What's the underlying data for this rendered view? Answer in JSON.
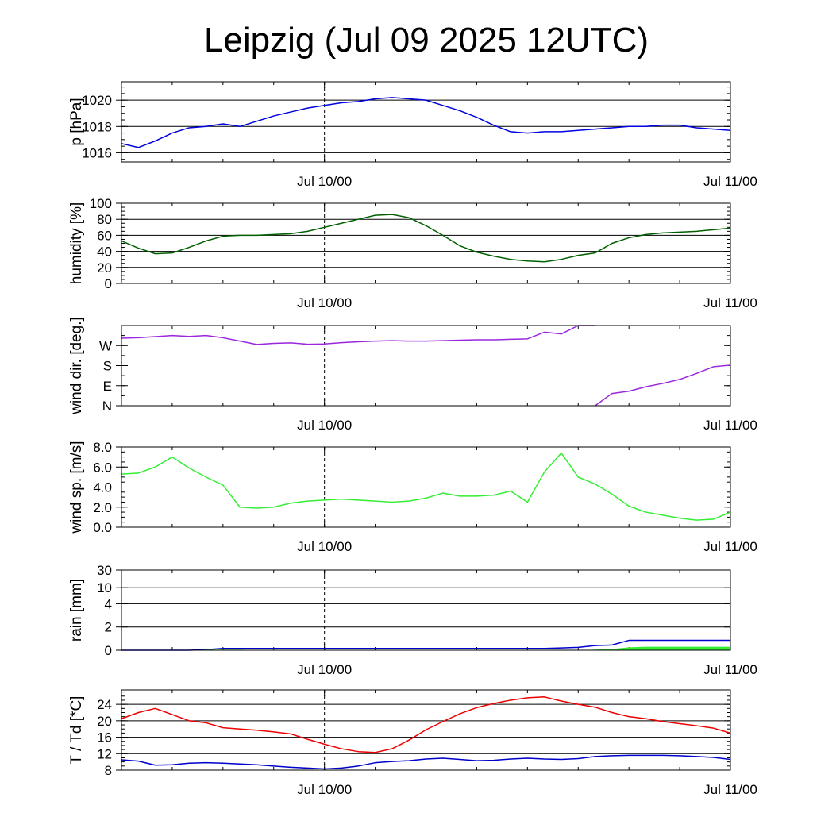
{
  "title": "Leipzig (Jul 09 2025 12UTC)",
  "x_axis": {
    "start": "Jul 09 12:00",
    "end": "Jul 11 00:00",
    "tick_labels": [
      "Jul 10/00",
      "Jul 11/00"
    ],
    "reference_line": "Jul 10/00"
  },
  "colors": {
    "pressure": "#0000e0",
    "humidity": "#006000",
    "wind_dir": "#9a27dd",
    "wind_speed": "#33ee33",
    "rain_total": "#0000cc",
    "rain_bar": "#33ee33",
    "temperature": "#ee0000",
    "dewpoint": "#0000cc"
  },
  "chart_data": [
    {
      "type": "line",
      "ylabel": "p [hPa]",
      "ylim": [
        1015.3,
        1021.4
      ],
      "yticks": [
        1016,
        1018,
        1020
      ],
      "ytick_labels": [
        "1016",
        "1018",
        "1020"
      ],
      "grid": true,
      "x": [
        "Jul 09 12:00",
        "Jul 09 13:00",
        "Jul 09 14:00",
        "Jul 09 15:00",
        "Jul 09 16:00",
        "Jul 09 17:00",
        "Jul 09 18:00",
        "Jul 09 19:00",
        "Jul 09 20:00",
        "Jul 09 21:00",
        "Jul 09 22:00",
        "Jul 09 23:00",
        "Jul 10 00:00",
        "Jul 10 01:00",
        "Jul 10 02:00",
        "Jul 10 03:00",
        "Jul 10 04:00",
        "Jul 10 05:00",
        "Jul 10 06:00",
        "Jul 10 07:00",
        "Jul 10 08:00",
        "Jul 10 09:00",
        "Jul 10 10:00",
        "Jul 10 11:00",
        "Jul 10 12:00",
        "Jul 10 13:00",
        "Jul 10 14:00",
        "Jul 10 15:00",
        "Jul 10 16:00",
        "Jul 10 17:00",
        "Jul 10 18:00",
        "Jul 10 19:00",
        "Jul 10 20:00",
        "Jul 10 21:00",
        "Jul 10 22:00",
        "Jul 10 23:00",
        "Jul 11 00:00"
      ],
      "series": [
        {
          "color_key": "pressure",
          "values": [
            1016.7,
            1016.4,
            1016.9,
            1017.5,
            1017.9,
            1018.0,
            1018.2,
            1018.0,
            1018.4,
            1018.8,
            1019.1,
            1019.4,
            1019.6,
            1019.8,
            1019.9,
            1020.1,
            1020.2,
            1020.1,
            1020.0,
            1019.6,
            1019.2,
            1018.7,
            1018.1,
            1017.6,
            1017.5,
            1017.6,
            1017.6,
            1017.7,
            1017.8,
            1017.9,
            1018.0,
            1018.0,
            1018.1,
            1018.1,
            1017.9,
            1017.8,
            1017.7
          ]
        }
      ]
    },
    {
      "type": "line",
      "ylabel": "humidity [%]",
      "ylim": [
        0,
        100
      ],
      "yticks": [
        0,
        20,
        40,
        60,
        80,
        100
      ],
      "ytick_labels": [
        "0",
        "20",
        "40",
        "60",
        "80",
        "100"
      ],
      "grid": true,
      "x": [
        "Jul 09 12:00",
        "Jul 09 13:00",
        "Jul 09 14:00",
        "Jul 09 15:00",
        "Jul 09 16:00",
        "Jul 09 17:00",
        "Jul 09 18:00",
        "Jul 09 19:00",
        "Jul 09 20:00",
        "Jul 09 21:00",
        "Jul 09 22:00",
        "Jul 09 23:00",
        "Jul 10 00:00",
        "Jul 10 01:00",
        "Jul 10 02:00",
        "Jul 10 03:00",
        "Jul 10 04:00",
        "Jul 10 05:00",
        "Jul 10 06:00",
        "Jul 10 07:00",
        "Jul 10 08:00",
        "Jul 10 09:00",
        "Jul 10 10:00",
        "Jul 10 11:00",
        "Jul 10 12:00",
        "Jul 10 13:00",
        "Jul 10 14:00",
        "Jul 10 15:00",
        "Jul 10 16:00",
        "Jul 10 17:00",
        "Jul 10 18:00",
        "Jul 10 19:00",
        "Jul 10 20:00",
        "Jul 10 21:00",
        "Jul 10 22:00",
        "Jul 10 23:00",
        "Jul 11 00:00"
      ],
      "series": [
        {
          "color_key": "humidity",
          "values": [
            53,
            44,
            37,
            38,
            45,
            53,
            59,
            60,
            60,
            61,
            62,
            65,
            70,
            75,
            80,
            85,
            86,
            82,
            72,
            60,
            47,
            39,
            34,
            30,
            28,
            27,
            30,
            35,
            38,
            50,
            57,
            61,
            63,
            64,
            65,
            67,
            69
          ]
        }
      ]
    },
    {
      "type": "line",
      "ylabel": "wind dir. [deg.]",
      "ylim": [
        0,
        360
      ],
      "yticks": [
        0,
        90,
        180,
        270
      ],
      "ytick_labels": [
        "N",
        "E",
        "S",
        "W"
      ],
      "grid": false,
      "x": [
        "Jul 09 12:00",
        "Jul 09 13:00",
        "Jul 09 14:00",
        "Jul 09 15:00",
        "Jul 09 16:00",
        "Jul 09 17:00",
        "Jul 09 18:00",
        "Jul 09 19:00",
        "Jul 09 20:00",
        "Jul 09 21:00",
        "Jul 09 22:00",
        "Jul 09 23:00",
        "Jul 10 00:00",
        "Jul 10 01:00",
        "Jul 10 02:00",
        "Jul 10 03:00",
        "Jul 10 04:00",
        "Jul 10 05:00",
        "Jul 10 06:00",
        "Jul 10 07:00",
        "Jul 10 08:00",
        "Jul 10 09:00",
        "Jul 10 10:00",
        "Jul 10 11:00",
        "Jul 10 12:00",
        "Jul 10 13:00",
        "Jul 10 14:00",
        "Jul 10 15:00",
        "Jul 10 16:00",
        "Jul 10 17:00",
        "Jul 10 18:00",
        "Jul 10 19:00",
        "Jul 10 20:00",
        "Jul 10 21:00",
        "Jul 10 22:00",
        "Jul 10 23:00",
        "Jul 11 00:00"
      ],
      "series": [
        {
          "color_key": "wind_dir",
          "values": [
            303,
            305,
            310,
            315,
            311,
            315,
            305,
            290,
            275,
            280,
            282,
            276,
            277,
            283,
            287,
            290,
            292,
            290,
            290,
            292,
            294,
            296,
            296,
            298,
            300,
            330,
            322,
            360,
            0,
            55,
            65,
            85,
            100,
            118,
            145,
            175,
            182
          ]
        }
      ]
    },
    {
      "type": "line",
      "ylabel": "wind sp. [m/s]",
      "ylim": [
        0,
        8
      ],
      "yticks": [
        0,
        2,
        4,
        6,
        8
      ],
      "ytick_labels": [
        "0.0",
        "2.0",
        "4.0",
        "6.0",
        "8.0"
      ],
      "grid": false,
      "x": [
        "Jul 09 12:00",
        "Jul 09 13:00",
        "Jul 09 14:00",
        "Jul 09 15:00",
        "Jul 09 16:00",
        "Jul 09 17:00",
        "Jul 09 18:00",
        "Jul 09 19:00",
        "Jul 09 20:00",
        "Jul 09 21:00",
        "Jul 09 22:00",
        "Jul 09 23:00",
        "Jul 10 00:00",
        "Jul 10 01:00",
        "Jul 10 02:00",
        "Jul 10 03:00",
        "Jul 10 04:00",
        "Jul 10 05:00",
        "Jul 10 06:00",
        "Jul 10 07:00",
        "Jul 10 08:00",
        "Jul 10 09:00",
        "Jul 10 10:00",
        "Jul 10 11:00",
        "Jul 10 12:00",
        "Jul 10 13:00",
        "Jul 10 14:00",
        "Jul 10 15:00",
        "Jul 10 16:00",
        "Jul 10 17:00",
        "Jul 10 18:00",
        "Jul 10 19:00",
        "Jul 10 20:00",
        "Jul 10 21:00",
        "Jul 10 22:00",
        "Jul 10 23:00",
        "Jul 11 00:00"
      ],
      "series": [
        {
          "color_key": "wind_speed",
          "values": [
            5.3,
            5.4,
            6.0,
            7.0,
            5.9,
            5.0,
            4.2,
            2.0,
            1.9,
            2.0,
            2.4,
            2.6,
            2.7,
            2.8,
            2.7,
            2.6,
            2.5,
            2.6,
            2.9,
            3.4,
            3.1,
            3.1,
            3.2,
            3.6,
            2.5,
            5.5,
            7.4,
            5.0,
            4.3,
            3.3,
            2.1,
            1.5,
            1.2,
            0.9,
            0.7,
            0.8,
            1.5
          ]
        }
      ]
    },
    {
      "type": "area",
      "ylabel": "rain [mm]",
      "ylim": [
        0,
        30
      ],
      "yticks": [
        0,
        2,
        4,
        10,
        30
      ],
      "ytick_labels": [
        "0",
        "2",
        "4",
        "10",
        "30"
      ],
      "grid": true,
      "x": [
        "Jul 09 12:00",
        "Jul 09 13:00",
        "Jul 09 14:00",
        "Jul 09 15:00",
        "Jul 09 16:00",
        "Jul 09 17:00",
        "Jul 09 18:00",
        "Jul 09 19:00",
        "Jul 09 20:00",
        "Jul 09 21:00",
        "Jul 09 22:00",
        "Jul 09 23:00",
        "Jul 10 00:00",
        "Jul 10 01:00",
        "Jul 10 02:00",
        "Jul 10 03:00",
        "Jul 10 04:00",
        "Jul 10 05:00",
        "Jul 10 06:00",
        "Jul 10 07:00",
        "Jul 10 08:00",
        "Jul 10 09:00",
        "Jul 10 10:00",
        "Jul 10 11:00",
        "Jul 10 12:00",
        "Jul 10 13:00",
        "Jul 10 14:00",
        "Jul 10 15:00",
        "Jul 10 16:00",
        "Jul 10 17:00",
        "Jul 10 18:00",
        "Jul 10 19:00",
        "Jul 10 20:00",
        "Jul 10 21:00",
        "Jul 10 22:00",
        "Jul 10 23:00",
        "Jul 11 00:00"
      ],
      "series": [
        {
          "color_key": "rain_total",
          "kind": "line",
          "values": [
            0,
            0,
            0,
            0,
            0,
            0.05,
            0.15,
            0.15,
            0.15,
            0.15,
            0.15,
            0.15,
            0.15,
            0.15,
            0.15,
            0.15,
            0.15,
            0.15,
            0.15,
            0.15,
            0.15,
            0.15,
            0.15,
            0.15,
            0.15,
            0.15,
            0.2,
            0.25,
            0.4,
            0.45,
            0.85,
            0.85,
            0.85,
            0.85,
            0.85,
            0.85,
            0.85
          ]
        },
        {
          "color_key": "rain_bar",
          "kind": "area",
          "values": [
            0,
            0,
            0,
            0,
            0,
            0.05,
            0.05,
            0.05,
            0,
            0,
            0,
            0,
            0,
            0,
            0,
            0,
            0,
            0,
            0,
            0,
            0,
            0,
            0,
            0,
            0,
            0,
            0,
            0,
            0.05,
            0.1,
            0.25,
            0.3,
            0.3,
            0.3,
            0.3,
            0.3,
            0.3
          ]
        }
      ]
    },
    {
      "type": "line",
      "ylabel": "T / Td [*C]",
      "ylim": [
        8,
        27.5
      ],
      "yticks": [
        8,
        12,
        16,
        20,
        24
      ],
      "ytick_labels": [
        "8",
        "12",
        "16",
        "20",
        "24"
      ],
      "grid": true,
      "x": [
        "Jul 09 12:00",
        "Jul 09 13:00",
        "Jul 09 14:00",
        "Jul 09 15:00",
        "Jul 09 16:00",
        "Jul 09 17:00",
        "Jul 09 18:00",
        "Jul 09 19:00",
        "Jul 09 20:00",
        "Jul 09 21:00",
        "Jul 09 22:00",
        "Jul 09 23:00",
        "Jul 10 00:00",
        "Jul 10 01:00",
        "Jul 10 02:00",
        "Jul 10 03:00",
        "Jul 10 04:00",
        "Jul 10 05:00",
        "Jul 10 06:00",
        "Jul 10 07:00",
        "Jul 10 08:00",
        "Jul 10 09:00",
        "Jul 10 10:00",
        "Jul 10 11:00",
        "Jul 10 12:00",
        "Jul 10 13:00",
        "Jul 10 14:00",
        "Jul 10 15:00",
        "Jul 10 16:00",
        "Jul 10 17:00",
        "Jul 10 18:00",
        "Jul 10 19:00",
        "Jul 10 20:00",
        "Jul 10 21:00",
        "Jul 10 22:00",
        "Jul 10 23:00",
        "Jul 11 00:00"
      ],
      "series": [
        {
          "color_key": "temperature",
          "values": [
            20.5,
            22.0,
            23.0,
            21.5,
            20.0,
            19.5,
            18.3,
            18.0,
            17.7,
            17.3,
            16.8,
            15.5,
            14.3,
            13.2,
            12.5,
            12.3,
            13.2,
            15.3,
            17.8,
            19.8,
            21.7,
            23.2,
            24.2,
            25.0,
            25.6,
            25.8,
            24.8,
            24.0,
            23.3,
            22.0,
            21.0,
            20.5,
            19.8,
            19.3,
            18.8,
            18.2,
            17.0
          ]
        },
        {
          "color_key": "dewpoint",
          "values": [
            10.5,
            10.2,
            9.2,
            9.3,
            9.7,
            9.8,
            9.7,
            9.5,
            9.3,
            9.0,
            8.7,
            8.5,
            8.3,
            8.5,
            9.0,
            9.8,
            10.1,
            10.3,
            10.7,
            10.9,
            10.6,
            10.3,
            10.4,
            10.7,
            10.9,
            10.7,
            10.6,
            10.8,
            11.3,
            11.5,
            11.6,
            11.6,
            11.6,
            11.5,
            11.3,
            11.1,
            10.6
          ]
        }
      ]
    }
  ]
}
